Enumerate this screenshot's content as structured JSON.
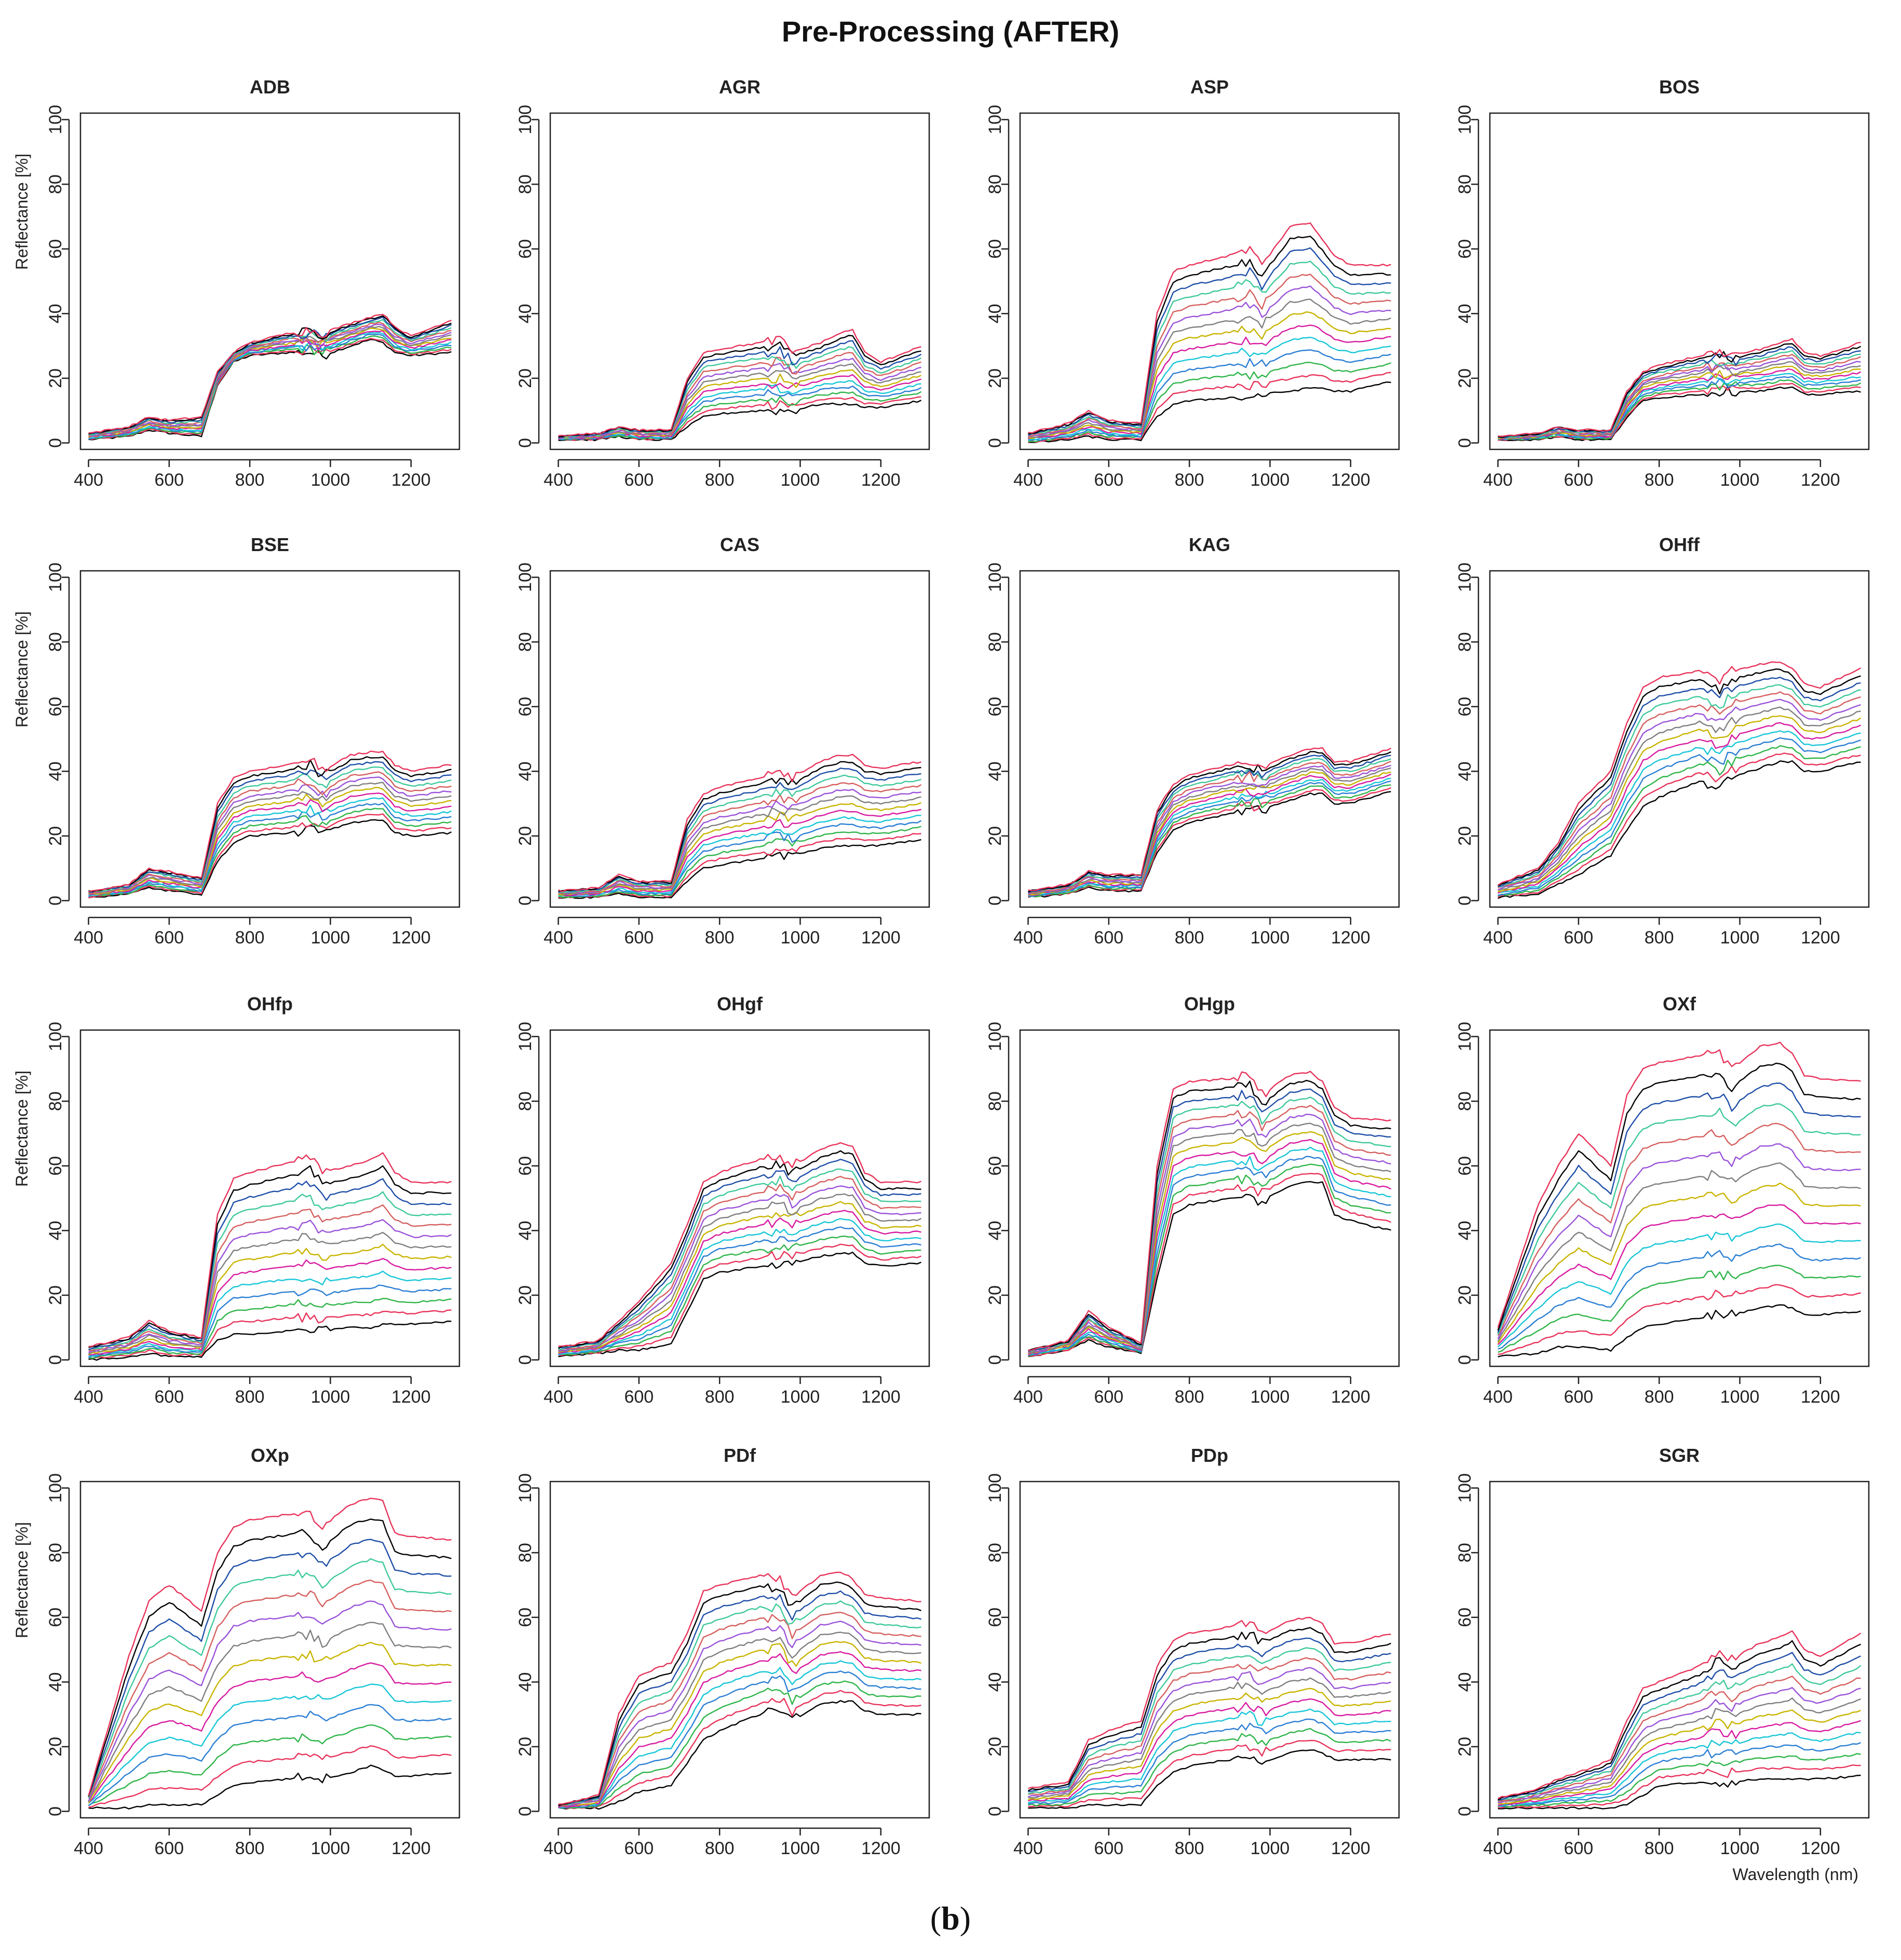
{
  "figure": {
    "title": "Pre-Processing (AFTER)",
    "caption_open": "(",
    "caption_letter": "b",
    "caption_close": ")",
    "y_axis_label": "Reflectance [%]",
    "x_axis_label": "Wavelength (nm)"
  },
  "chart_data": {
    "type": "line",
    "layout": "4x4 small multiples",
    "xlim": [
      380,
      1320
    ],
    "ylim": [
      -2,
      102
    ],
    "x_ticks": [
      400,
      600,
      800,
      1000,
      1200
    ],
    "y_ticks": [
      0,
      20,
      40,
      60,
      80,
      100
    ],
    "x_tick_labels": [
      "400",
      "600",
      "800",
      "1000",
      "1200"
    ],
    "y_tick_labels": [
      "0",
      "20",
      "40",
      "60",
      "80",
      "100"
    ],
    "series_colors": [
      "#000000",
      "#e8335a",
      "#2fb54a",
      "#2b7fd4",
      "#18c6d8",
      "#d81ba0",
      "#c8b400",
      "#7f7f7f",
      "#9a53d9",
      "#d65f5f",
      "#3ec99b",
      "#1f4fa8"
    ],
    "panels": [
      {
        "title": "ADB",
        "wavelengths": [
          400,
          500,
          550,
          600,
          680,
          720,
          760,
          800,
          900,
          950,
          980,
          1050,
          1100,
          1130,
          1160,
          1200,
          1300
        ],
        "envelope_low": [
          1,
          2,
          4,
          3,
          2,
          18,
          25,
          27,
          28,
          28,
          27,
          30,
          32,
          31,
          28,
          27,
          28
        ],
        "envelope_high": [
          3,
          5,
          8,
          7,
          8,
          22,
          28,
          31,
          34,
          35,
          34,
          37,
          39,
          40,
          36,
          33,
          38
        ]
      },
      {
        "title": "AGR",
        "wavelengths": [
          400,
          500,
          550,
          600,
          680,
          720,
          760,
          800,
          900,
          950,
          980,
          1050,
          1100,
          1130,
          1160,
          1200,
          1300
        ],
        "envelope_low": [
          1,
          1,
          2,
          1,
          1,
          5,
          8,
          9,
          10,
          10,
          10,
          12,
          12,
          12,
          11,
          11,
          13
        ],
        "envelope_high": [
          2,
          3,
          5,
          4,
          4,
          20,
          28,
          29,
          31,
          32,
          28,
          31,
          34,
          35,
          28,
          25,
          30
        ]
      },
      {
        "title": "ASP",
        "wavelengths": [
          400,
          500,
          550,
          600,
          680,
          720,
          760,
          800,
          900,
          950,
          980,
          1050,
          1100,
          1130,
          1160,
          1200,
          1300
        ],
        "envelope_low": [
          0,
          1,
          2,
          1,
          1,
          8,
          12,
          13,
          14,
          14,
          15,
          16,
          17,
          17,
          16,
          16,
          19
        ],
        "envelope_high": [
          3,
          6,
          10,
          7,
          6,
          40,
          53,
          55,
          58,
          60,
          55,
          67,
          68,
          63,
          58,
          55,
          55
        ]
      },
      {
        "title": "BOS",
        "wavelengths": [
          400,
          500,
          550,
          600,
          680,
          720,
          760,
          800,
          900,
          950,
          980,
          1050,
          1100,
          1130,
          1160,
          1200,
          1300
        ],
        "envelope_low": [
          1,
          1,
          2,
          1,
          1,
          8,
          13,
          14,
          15,
          16,
          16,
          16,
          17,
          17,
          15,
          15,
          16
        ],
        "envelope_high": [
          2,
          3,
          5,
          4,
          4,
          16,
          22,
          24,
          27,
          28,
          27,
          29,
          31,
          32,
          28,
          27,
          31
        ]
      },
      {
        "title": "BSE",
        "wavelengths": [
          400,
          500,
          550,
          600,
          680,
          720,
          760,
          800,
          900,
          950,
          980,
          1050,
          1100,
          1130,
          1160,
          1200,
          1300
        ],
        "envelope_low": [
          1,
          2,
          4,
          3,
          2,
          12,
          18,
          20,
          21,
          22,
          21,
          24,
          25,
          25,
          21,
          20,
          21
        ],
        "envelope_high": [
          3,
          5,
          10,
          9,
          7,
          30,
          38,
          40,
          42,
          44,
          40,
          45,
          46,
          46,
          42,
          40,
          42
        ]
      },
      {
        "title": "CAS",
        "wavelengths": [
          400,
          500,
          550,
          600,
          680,
          720,
          760,
          800,
          900,
          950,
          980,
          1050,
          1100,
          1130,
          1160,
          1200,
          1300
        ],
        "envelope_low": [
          1,
          1,
          2,
          1,
          1,
          6,
          10,
          11,
          13,
          14,
          14,
          16,
          17,
          17,
          17,
          17,
          19
        ],
        "envelope_high": [
          3,
          4,
          8,
          6,
          6,
          25,
          33,
          35,
          38,
          40,
          38,
          43,
          45,
          45,
          42,
          41,
          43
        ]
      },
      {
        "title": "KAG",
        "wavelengths": [
          400,
          500,
          550,
          600,
          680,
          720,
          760,
          800,
          900,
          950,
          980,
          1050,
          1100,
          1130,
          1160,
          1200,
          1300
        ],
        "envelope_low": [
          1,
          2,
          4,
          3,
          3,
          15,
          22,
          24,
          27,
          28,
          28,
          31,
          33,
          33,
          30,
          30,
          34
        ],
        "envelope_high": [
          3,
          5,
          9,
          8,
          8,
          28,
          36,
          39,
          42,
          43,
          41,
          45,
          47,
          47,
          43,
          43,
          47
        ]
      },
      {
        "title": "OHff",
        "wavelengths": [
          400,
          500,
          550,
          600,
          680,
          720,
          760,
          800,
          900,
          950,
          980,
          1050,
          1100,
          1130,
          1160,
          1200,
          1300
        ],
        "envelope_low": [
          1,
          2,
          5,
          8,
          14,
          22,
          29,
          32,
          37,
          35,
          38,
          41,
          43,
          43,
          40,
          40,
          43
        ],
        "envelope_high": [
          5,
          10,
          18,
          30,
          40,
          55,
          66,
          69,
          71,
          68,
          71,
          73,
          74,
          72,
          67,
          66,
          72
        ]
      },
      {
        "title": "OHfp",
        "wavelengths": [
          400,
          500,
          550,
          600,
          680,
          720,
          760,
          800,
          900,
          950,
          980,
          1050,
          1100,
          1130,
          1160,
          1200,
          1300
        ],
        "envelope_low": [
          0,
          1,
          2,
          1,
          1,
          6,
          8,
          8,
          9,
          9,
          9,
          10,
          10,
          11,
          11,
          11,
          12
        ],
        "envelope_high": [
          4,
          7,
          12,
          9,
          7,
          45,
          56,
          58,
          61,
          63,
          58,
          60,
          62,
          64,
          58,
          55,
          55
        ]
      },
      {
        "title": "OHgf",
        "wavelengths": [
          400,
          500,
          550,
          600,
          680,
          720,
          760,
          800,
          900,
          950,
          980,
          1050,
          1100,
          1130,
          1160,
          1200,
          1300
        ],
        "envelope_low": [
          1,
          2,
          3,
          3,
          5,
          15,
          25,
          27,
          29,
          30,
          30,
          32,
          33,
          33,
          30,
          29,
          30
        ],
        "envelope_high": [
          4,
          6,
          12,
          18,
          30,
          42,
          55,
          58,
          62,
          63,
          60,
          65,
          67,
          66,
          58,
          55,
          55
        ]
      },
      {
        "title": "OHgp",
        "wavelengths": [
          400,
          500,
          550,
          600,
          680,
          720,
          760,
          800,
          900,
          950,
          980,
          1050,
          1100,
          1130,
          1160,
          1200,
          1300
        ],
        "envelope_low": [
          1,
          3,
          6,
          4,
          2,
          25,
          45,
          48,
          50,
          50,
          49,
          54,
          55,
          55,
          45,
          43,
          40
        ],
        "envelope_high": [
          3,
          6,
          15,
          10,
          5,
          60,
          84,
          86,
          87,
          88,
          82,
          88,
          89,
          86,
          78,
          75,
          74
        ]
      },
      {
        "title": "OXf",
        "wavelengths": [
          400,
          500,
          550,
          600,
          680,
          720,
          760,
          800,
          900,
          950,
          980,
          1050,
          1100,
          1130,
          1160,
          1200,
          1300
        ],
        "envelope_low": [
          1,
          2,
          4,
          4,
          3,
          7,
          10,
          11,
          13,
          14,
          14,
          16,
          17,
          16,
          14,
          14,
          15
        ],
        "envelope_high": [
          10,
          48,
          60,
          70,
          60,
          82,
          90,
          92,
          94,
          95,
          90,
          97,
          98,
          95,
          88,
          87,
          86
        ]
      },
      {
        "title": "OXp",
        "wavelengths": [
          400,
          500,
          550,
          600,
          680,
          720,
          760,
          800,
          900,
          950,
          980,
          1050,
          1100,
          1130,
          1160,
          1200,
          1300
        ],
        "envelope_low": [
          1,
          1,
          2,
          2,
          2,
          5,
          8,
          9,
          10,
          11,
          10,
          12,
          14,
          13,
          11,
          11,
          12
        ],
        "envelope_high": [
          5,
          48,
          65,
          70,
          62,
          80,
          88,
          90,
          92,
          92,
          88,
          95,
          97,
          96,
          86,
          85,
          84
        ]
      },
      {
        "title": "PDf",
        "wavelengths": [
          400,
          500,
          550,
          600,
          680,
          720,
          760,
          800,
          900,
          950,
          980,
          1050,
          1100,
          1130,
          1160,
          1200,
          1300
        ],
        "envelope_low": [
          1,
          1,
          3,
          6,
          8,
          15,
          22,
          25,
          30,
          32,
          28,
          33,
          34,
          34,
          31,
          30,
          30
        ],
        "envelope_high": [
          2,
          5,
          30,
          42,
          46,
          55,
          68,
          70,
          73,
          72,
          66,
          73,
          74,
          72,
          67,
          66,
          65
        ]
      },
      {
        "title": "PDp",
        "wavelengths": [
          400,
          500,
          550,
          600,
          680,
          720,
          760,
          800,
          900,
          950,
          980,
          1050,
          1100,
          1130,
          1160,
          1200,
          1300
        ],
        "envelope_low": [
          1,
          1,
          2,
          2,
          2,
          8,
          12,
          14,
          16,
          17,
          15,
          18,
          19,
          18,
          16,
          16,
          16
        ],
        "envelope_high": [
          7,
          9,
          22,
          25,
          28,
          45,
          53,
          55,
          57,
          58,
          55,
          59,
          60,
          58,
          52,
          52,
          55
        ]
      },
      {
        "title": "SGR",
        "wavelengths": [
          400,
          500,
          550,
          600,
          680,
          720,
          760,
          800,
          900,
          950,
          980,
          1050,
          1100,
          1130,
          1160,
          1200,
          1300
        ],
        "envelope_low": [
          1,
          1,
          1,
          1,
          1,
          2,
          5,
          8,
          9,
          9,
          9,
          10,
          10,
          10,
          10,
          10,
          11
        ],
        "envelope_high": [
          4,
          7,
          10,
          12,
          16,
          28,
          38,
          40,
          45,
          50,
          47,
          52,
          54,
          56,
          50,
          48,
          55
        ]
      }
    ]
  }
}
